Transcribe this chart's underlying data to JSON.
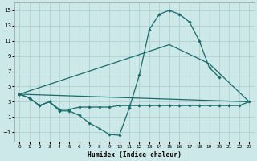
{
  "xlabel": "Humidex (Indice chaleur)",
  "background_color": "#cde8e8",
  "grid_color": "#aacccc",
  "line_color": "#1a6b6b",
  "xlim": [
    -0.5,
    23.5
  ],
  "ylim": [
    -2.2,
    16.0
  ],
  "xticks": [
    0,
    1,
    2,
    3,
    4,
    5,
    6,
    7,
    8,
    9,
    10,
    11,
    12,
    13,
    14,
    15,
    16,
    17,
    18,
    19,
    20,
    21,
    22,
    23
  ],
  "yticks": [
    -1,
    1,
    3,
    5,
    7,
    9,
    11,
    13,
    15
  ],
  "curve1_x": [
    0,
    1,
    2,
    3,
    4,
    5,
    6,
    7,
    8,
    9,
    10,
    11,
    12,
    13,
    14,
    15,
    16,
    17,
    18,
    19,
    20
  ],
  "curve1_y": [
    4.0,
    3.5,
    2.5,
    3.0,
    1.8,
    1.8,
    1.2,
    0.2,
    -0.5,
    -1.3,
    -1.4,
    2.2,
    6.5,
    12.5,
    14.5,
    15.0,
    14.5,
    13.5,
    11.0,
    7.5,
    6.2
  ],
  "curve2_x": [
    0,
    1,
    2,
    3,
    4,
    5,
    6,
    7,
    8,
    9,
    10,
    11,
    12,
    13,
    14,
    15,
    16,
    17,
    18,
    19,
    20,
    21,
    22,
    23
  ],
  "curve2_y": [
    4.0,
    3.5,
    2.5,
    3.0,
    2.0,
    2.0,
    2.3,
    2.3,
    2.3,
    2.3,
    2.5,
    2.5,
    2.5,
    2.5,
    2.5,
    2.5,
    2.5,
    2.5,
    2.5,
    2.5,
    2.5,
    2.5,
    2.5,
    3.0
  ],
  "line3_x": [
    0,
    23
  ],
  "line3_y": [
    4.0,
    3.0
  ],
  "line4_x": [
    0,
    15,
    19,
    23
  ],
  "line4_y": [
    4.0,
    10.5,
    8.0,
    3.0
  ]
}
